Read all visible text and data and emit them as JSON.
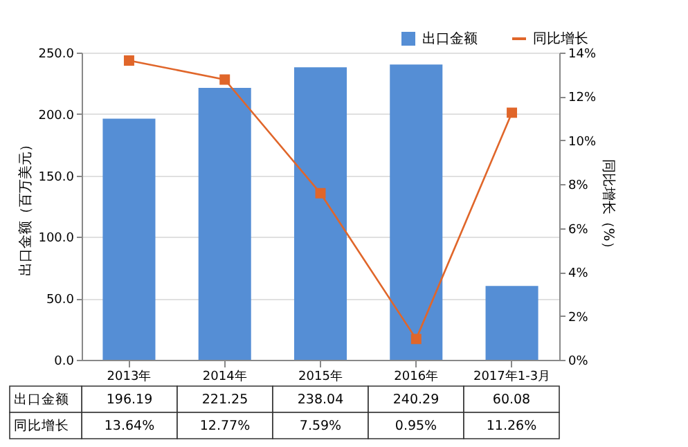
{
  "chart_data": {
    "type": "bar",
    "categories": [
      "2013年",
      "2014年",
      "2015年",
      "2016年",
      "2017年1-3月"
    ],
    "ylabel": "出口金额（百万美元）",
    "y2label": "同比增长（%）",
    "series": [
      {
        "name": "出口金额",
        "color": "#558ed5",
        "values": [
          196.19,
          221.25,
          238.04,
          240.29,
          60.08
        ],
        "value_labels": [
          "196.19",
          "221.25",
          "238.04",
          "240.29",
          "60.08"
        ]
      },
      {
        "name": "同比增长",
        "type": "line",
        "axis": "y2",
        "color": "#e0662a",
        "values": [
          13.64,
          12.77,
          7.59,
          0.95,
          11.26
        ],
        "value_labels": [
          "13.64%",
          "12.77%",
          "7.59%",
          "0.95%",
          "11.26%"
        ]
      }
    ],
    "ylim": [
      0,
      250
    ],
    "yticks": [
      {
        "value": 0,
        "label": "0.0"
      },
      {
        "value": 50,
        "label": "50.0"
      },
      {
        "value": 100,
        "label": "100.0"
      },
      {
        "value": 150,
        "label": "150.0"
      },
      {
        "value": 200,
        "label": "200.0"
      },
      {
        "value": 250,
        "label": "250.0"
      }
    ],
    "y2lim": [
      0,
      14
    ],
    "y2ticks": [
      {
        "value": 0,
        "label": "0%"
      },
      {
        "value": 2,
        "label": "2%"
      },
      {
        "value": 4,
        "label": "4%"
      },
      {
        "value": 6,
        "label": "6%"
      },
      {
        "value": 8,
        "label": "8%"
      },
      {
        "value": 10,
        "label": "10%"
      },
      {
        "value": 12,
        "label": "12%"
      },
      {
        "value": 14,
        "label": "14%"
      }
    ],
    "grid": "y",
    "legend": "top right",
    "marker": "square",
    "line_style": "solid"
  }
}
